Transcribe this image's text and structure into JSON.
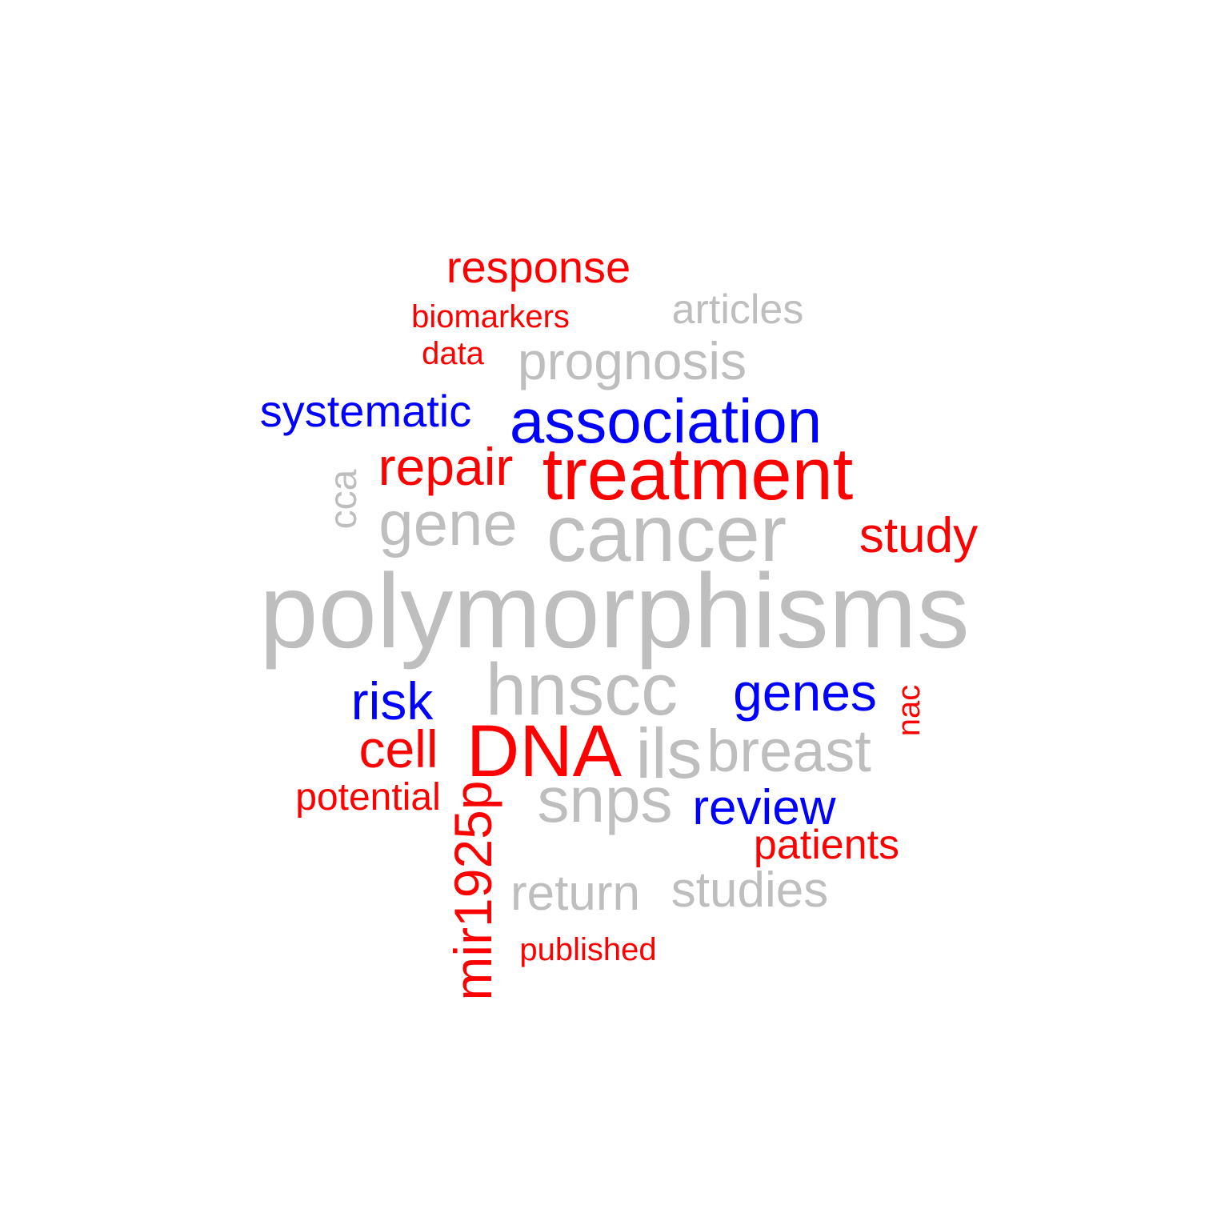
{
  "colors": {
    "gray": "#bebebe",
    "red": "#ff0000",
    "blue": "#0000ff"
  },
  "words": [
    {
      "id": "response",
      "text": "response",
      "color": "red"
    },
    {
      "id": "articles",
      "text": "articles",
      "color": "gray"
    },
    {
      "id": "biomarkers",
      "text": "biomarkers",
      "color": "red"
    },
    {
      "id": "data",
      "text": "data",
      "color": "red"
    },
    {
      "id": "prognosis",
      "text": "prognosis",
      "color": "gray"
    },
    {
      "id": "systematic",
      "text": "systematic",
      "color": "blue"
    },
    {
      "id": "association",
      "text": "association",
      "color": "blue"
    },
    {
      "id": "repair",
      "text": "repair",
      "color": "red"
    },
    {
      "id": "treatment",
      "text": "treatment",
      "color": "red"
    },
    {
      "id": "cca",
      "text": "cca",
      "color": "gray"
    },
    {
      "id": "gene",
      "text": "gene",
      "color": "gray"
    },
    {
      "id": "cancer",
      "text": "cancer",
      "color": "gray"
    },
    {
      "id": "study",
      "text": "study",
      "color": "red"
    },
    {
      "id": "polymorphisms",
      "text": "polymorphisms",
      "color": "gray"
    },
    {
      "id": "hnscc",
      "text": "hnscc",
      "color": "gray"
    },
    {
      "id": "genes",
      "text": "genes",
      "color": "blue"
    },
    {
      "id": "nac",
      "text": "nac",
      "color": "red"
    },
    {
      "id": "risk",
      "text": "risk",
      "color": "blue"
    },
    {
      "id": "cell",
      "text": "cell",
      "color": "red"
    },
    {
      "id": "dna",
      "text": "DNA",
      "color": "red"
    },
    {
      "id": "ils",
      "text": "ils",
      "color": "gray"
    },
    {
      "id": "breast",
      "text": "breast",
      "color": "gray"
    },
    {
      "id": "potential",
      "text": "potential",
      "color": "red"
    },
    {
      "id": "mir1925p",
      "text": "mir1925p",
      "color": "red"
    },
    {
      "id": "snps",
      "text": "snps",
      "color": "gray"
    },
    {
      "id": "review",
      "text": "review",
      "color": "blue"
    },
    {
      "id": "patients",
      "text": "patients",
      "color": "red"
    },
    {
      "id": "return",
      "text": "return",
      "color": "gray"
    },
    {
      "id": "studies",
      "text": "studies",
      "color": "gray"
    },
    {
      "id": "published",
      "text": "published",
      "color": "red"
    }
  ]
}
